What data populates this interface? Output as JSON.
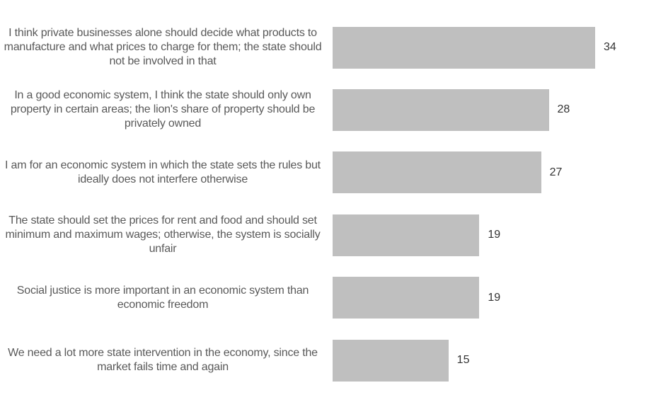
{
  "chart_data": {
    "type": "bar",
    "orientation": "horizontal",
    "categories": [
      "I think private businesses alone should decide what products to manufacture and what prices to charge for them; the state should not be involved in that",
      "In a good economic system, I think the state should only own property in certain areas; the lion's share of property should be privately owned",
      "I am for an economic system in which the state sets the rules but ideally does not interfere otherwise",
      "The state should set the prices for rent and food and should set minimum and maximum wages; otherwise, the system is socially unfair",
      "Social justice is more important in an economic system than economic freedom",
      "We need a lot more state intervention in the economy, since the market fails time and again"
    ],
    "values": [
      34,
      28,
      27,
      19,
      19,
      15
    ],
    "value_labels": [
      "34",
      "28",
      "27",
      "19",
      "19",
      "15"
    ],
    "xlim": [
      0,
      34
    ],
    "grid": false,
    "legend": "none",
    "bar_color": "#bfbfbf",
    "label_color": "#595959",
    "value_color": "#333333"
  }
}
